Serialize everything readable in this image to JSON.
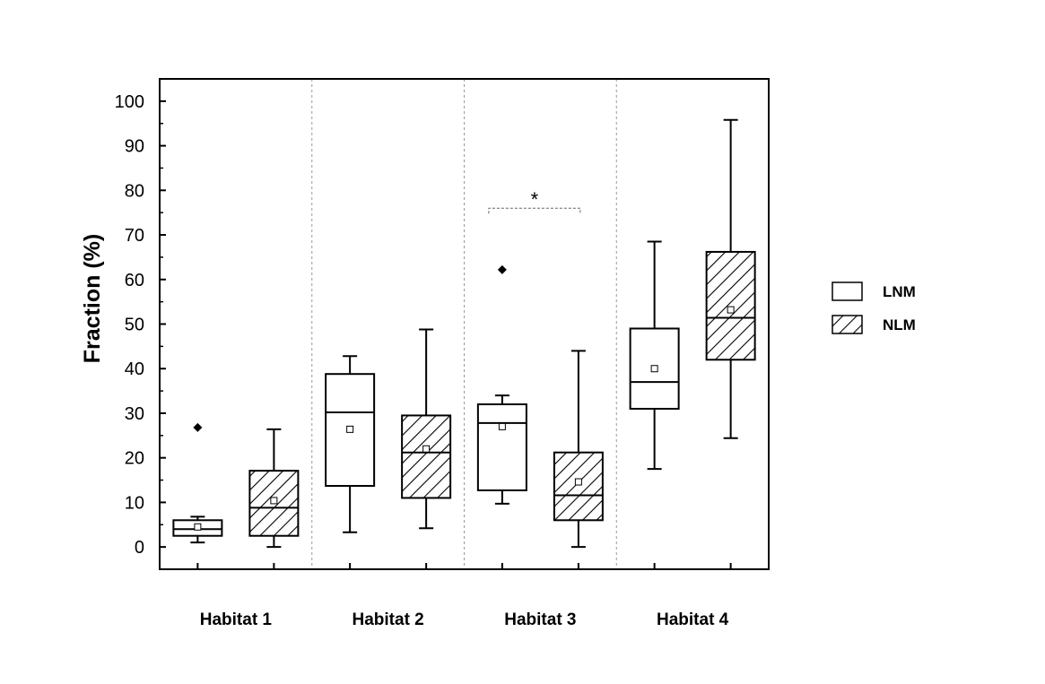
{
  "chart_data": {
    "type": "box",
    "ylabel": "Fraction (%)",
    "ylim": [
      -5,
      105
    ],
    "yticks": [
      0,
      10,
      20,
      30,
      40,
      50,
      60,
      70,
      80,
      90,
      100
    ],
    "ytick_labels": [
      "0",
      "10",
      "20",
      "30",
      "40",
      "50",
      "60",
      "70",
      "80",
      "90",
      "100"
    ],
    "grid": false,
    "categories": [
      "Habitat 1",
      "Habitat 2",
      "Habitat 3",
      "Habitat 4"
    ],
    "legend_position": "right",
    "series": [
      {
        "name": "LNM",
        "pattern": "open",
        "boxes": [
          {
            "min": 1,
            "q1": 2.5,
            "median": 4,
            "q3": 6,
            "max": 6.8,
            "mean": 4.5,
            "outliers": [
              26.8
            ]
          },
          {
            "min": 3.3,
            "q1": 13.7,
            "median": 30.2,
            "q3": 38.8,
            "max": 42.8,
            "mean": 26.4,
            "outliers": []
          },
          {
            "min": 9.7,
            "q1": 12.7,
            "median": 27.8,
            "q3": 32,
            "max": 34,
            "mean": 27,
            "outliers": [
              62.2
            ]
          },
          {
            "min": 17.5,
            "q1": 31,
            "median": 37,
            "q3": 49,
            "max": 68.5,
            "mean": 40,
            "outliers": []
          }
        ]
      },
      {
        "name": "NLM",
        "pattern": "hatched",
        "boxes": [
          {
            "min": 0,
            "q1": 2.5,
            "median": 8.8,
            "q3": 17.1,
            "max": 26.4,
            "mean": 10.4,
            "outliers": []
          },
          {
            "min": 4.2,
            "q1": 11,
            "median": 21.2,
            "q3": 29.5,
            "max": 48.8,
            "mean": 22,
            "outliers": []
          },
          {
            "min": 0,
            "q1": 6,
            "median": 11.6,
            "q3": 21.2,
            "max": 44,
            "mean": 14.6,
            "outliers": []
          },
          {
            "min": 24.4,
            "q1": 42,
            "median": 51.4,
            "q3": 66.2,
            "max": 95.8,
            "mean": 53.2,
            "outliers": []
          }
        ]
      }
    ],
    "annotations": [
      {
        "text": "*",
        "category": "Habitat 3",
        "y": 76,
        "between": [
          "LNM",
          "NLM"
        ]
      }
    ]
  }
}
